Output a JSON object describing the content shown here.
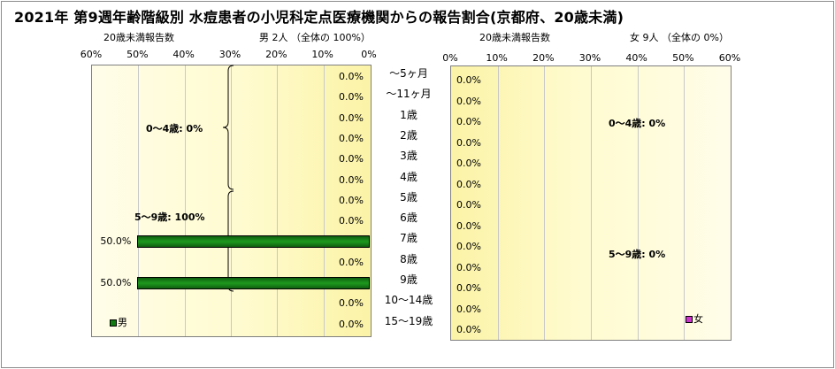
{
  "title": "2021年 第9週年齢階級別 水痘患者の小児科定点医療機関からの報告割合(京都府、20歳未満)",
  "colors": {
    "male": "#117a11",
    "female": "#cc33cc"
  },
  "chart_data": [
    {
      "type": "bar",
      "orientation": "horizontal",
      "direction": "right-to-left",
      "axis_title": "20歳未満報告数",
      "header": "男 2人 （全体の 100%）",
      "ticks": [
        "60%",
        "50%",
        "40%",
        "30%",
        "20%",
        "10%",
        "0%"
      ],
      "xlim": [
        0,
        60
      ],
      "categories": [
        "～5ヶ月",
        "～11ヶ月",
        "1歳",
        "2歳",
        "3歳",
        "4歳",
        "5歳",
        "6歳",
        "7歳",
        "8歳",
        "9歳",
        "10～14歳",
        "15～19歳"
      ],
      "series": [
        {
          "name": "男",
          "values": [
            0,
            0,
            0,
            0,
            0,
            0,
            0,
            0,
            50,
            0,
            50,
            0,
            0
          ]
        }
      ],
      "data_labels": [
        "0.0%",
        "0.0%",
        "0.0%",
        "0.0%",
        "0.0%",
        "0.0%",
        "0.0%",
        "0.0%",
        "50.0%",
        "0.0%",
        "50.0%",
        "0.0%",
        "0.0%"
      ],
      "group_labels": [
        "0～4歳: 0%",
        "5～9歳: 100%"
      ],
      "legend": "bottom-left"
    },
    {
      "type": "bar",
      "orientation": "horizontal",
      "direction": "left-to-right",
      "axis_title": "20歳未満報告数",
      "header": "女 9人 （全体の 0%）",
      "ticks": [
        "0%",
        "10%",
        "20%",
        "30%",
        "40%",
        "50%",
        "60%"
      ],
      "xlim": [
        0,
        60
      ],
      "categories": [
        "～5ヶ月",
        "～11ヶ月",
        "1歳",
        "2歳",
        "3歳",
        "4歳",
        "5歳",
        "6歳",
        "7歳",
        "8歳",
        "9歳",
        "10～14歳",
        "15～19歳"
      ],
      "series": [
        {
          "name": "女",
          "values": [
            0,
            0,
            0,
            0,
            0,
            0,
            0,
            0,
            0,
            0,
            0,
            0,
            0
          ]
        }
      ],
      "data_labels": [
        "0.0%",
        "0.0%",
        "0.0%",
        "0.0%",
        "0.0%",
        "0.0%",
        "0.0%",
        "0.0%",
        "0.0%",
        "0.0%",
        "0.0%",
        "0.0%",
        "0.0%"
      ],
      "group_labels": [
        "0～4歳: 0%",
        "5～9歳: 0%"
      ],
      "legend": "bottom-right"
    }
  ]
}
